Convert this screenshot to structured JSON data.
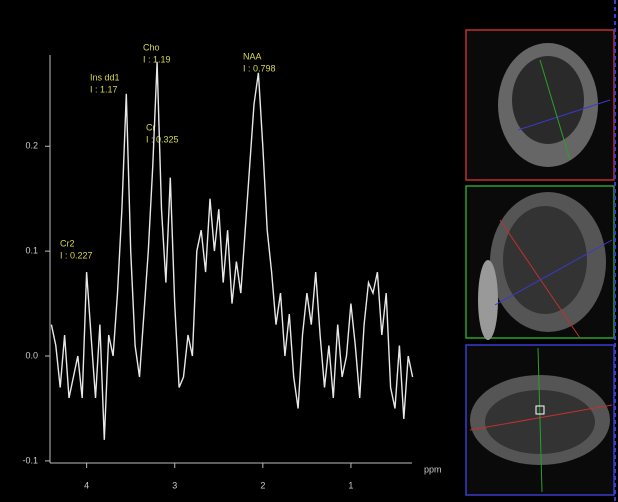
{
  "chart_data": {
    "type": "line",
    "x_label": "ppm",
    "xlim": [
      4.45,
      0.25
    ],
    "xticks": [
      4,
      3,
      2,
      1
    ],
    "ylim": [
      -0.102,
      0.287
    ],
    "yticks": [
      -0.1,
      {
        "value": 0,
        "label": "0.0"
      },
      0.1,
      0.2
    ],
    "color": "#e8e8e8",
    "annotations": [
      {
        "name": "Cr2",
        "text": "I : 0.227"
      },
      {
        "name": "Ins dd1",
        "text": "I : 1.17"
      },
      {
        "name": "Cho",
        "text": "I : 1.19"
      },
      {
        "name": "Cr",
        "text": "I : 0.325"
      },
      {
        "name": "NAA",
        "text": "I : 0.798"
      }
    ],
    "x": [
      4.4,
      4.35,
      4.3,
      4.25,
      4.2,
      4.15,
      4.1,
      4.05,
      4.0,
      3.95,
      3.9,
      3.85,
      3.8,
      3.75,
      3.7,
      3.65,
      3.6,
      3.55,
      3.5,
      3.45,
      3.4,
      3.35,
      3.3,
      3.25,
      3.2,
      3.15,
      3.1,
      3.05,
      3.0,
      2.95,
      2.9,
      2.85,
      2.8,
      2.75,
      2.7,
      2.65,
      2.6,
      2.55,
      2.5,
      2.45,
      2.4,
      2.35,
      2.3,
      2.25,
      2.2,
      2.15,
      2.1,
      2.05,
      2.0,
      1.95,
      1.9,
      1.85,
      1.8,
      1.75,
      1.7,
      1.65,
      1.6,
      1.55,
      1.5,
      1.45,
      1.4,
      1.35,
      1.3,
      1.25,
      1.2,
      1.15,
      1.1,
      1.05,
      1.0,
      0.95,
      0.9,
      0.85,
      0.8,
      0.75,
      0.7,
      0.65,
      0.6,
      0.55,
      0.5,
      0.45,
      0.4,
      0.35,
      0.3
    ],
    "values": [
      0.03,
      0.01,
      -0.03,
      0.02,
      -0.04,
      -0.02,
      0.0,
      -0.04,
      0.08,
      0.02,
      -0.04,
      0.03,
      -0.08,
      0.02,
      0.0,
      0.06,
      0.14,
      0.25,
      0.1,
      0.01,
      -0.02,
      0.04,
      0.1,
      0.18,
      0.28,
      0.14,
      0.07,
      0.17,
      0.05,
      -0.03,
      -0.02,
      0.02,
      0.0,
      0.1,
      0.12,
      0.08,
      0.15,
      0.1,
      0.14,
      0.07,
      0.12,
      0.05,
      0.09,
      0.06,
      0.12,
      0.18,
      0.24,
      0.27,
      0.2,
      0.12,
      0.08,
      0.03,
      0.06,
      0.0,
      0.04,
      -0.02,
      -0.05,
      0.02,
      0.06,
      0.03,
      0.08,
      0.02,
      -0.03,
      0.01,
      -0.04,
      0.03,
      -0.02,
      0.0,
      0.05,
      0.01,
      -0.04,
      0.03,
      0.07,
      0.06,
      0.08,
      0.02,
      0.06,
      -0.03,
      -0.05,
      0.01,
      -0.06,
      0.0,
      -0.02
    ]
  }
}
